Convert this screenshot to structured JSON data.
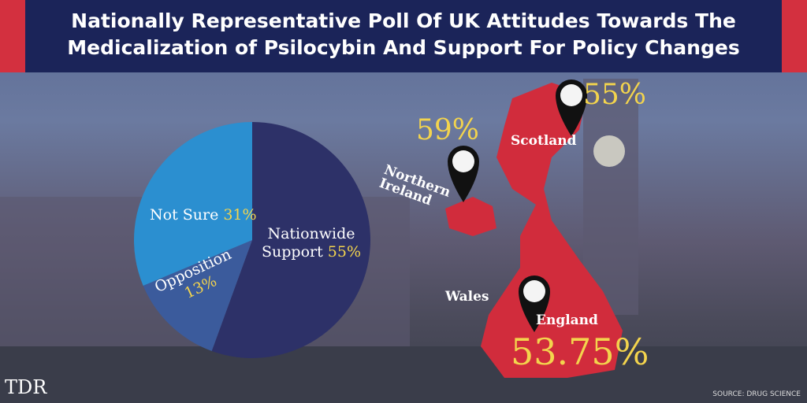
{
  "header": {
    "title": "Nationally Representative Poll Of UK Attitudes Towards The Medicalization of Psilocybin And Support For Policy Changes"
  },
  "chart_data": {
    "type": "pie",
    "categories": [
      "Nationwide Support",
      "Opposition",
      "Not Sure"
    ],
    "values": [
      55,
      13,
      31
    ],
    "value_labels": [
      "55%",
      "13%",
      "31%"
    ],
    "colors": [
      "#2d3168",
      "#3b5b9c",
      "#2b8fd0"
    ]
  },
  "map": {
    "regions": [
      {
        "name": "Scotland",
        "value_label": "55%"
      },
      {
        "name": "Northern Ireland",
        "value_label": "59%"
      },
      {
        "name": "Wales"
      },
      {
        "name": "England",
        "value_label": "53.75%"
      }
    ]
  },
  "footer": {
    "logo": "TDR",
    "source": "SOURCE: DRUG SCIENCE"
  }
}
